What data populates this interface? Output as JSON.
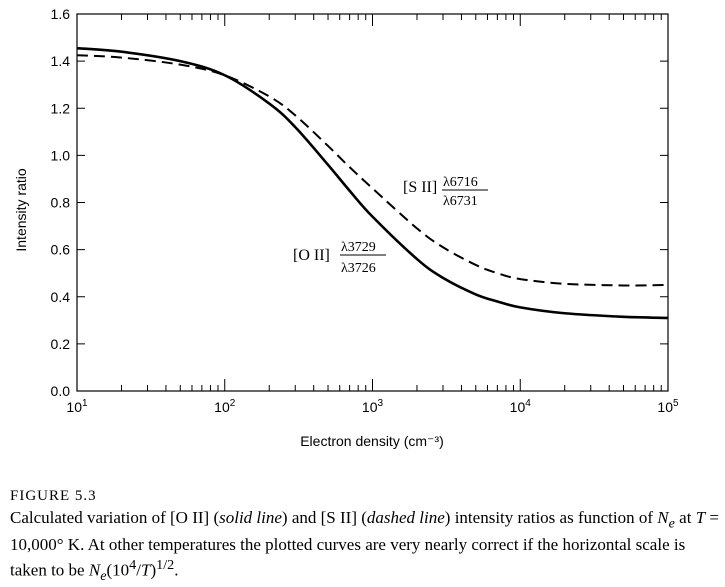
{
  "chart_data": {
    "type": "line",
    "xlabel": "Electron density (cm⁻³)",
    "ylabel": "Intensity ratio",
    "xscale": "log",
    "xlim": [
      10,
      100000
    ],
    "ylim": [
      0.0,
      1.6
    ],
    "x_ticks": [
      {
        "value": 10,
        "base": "10",
        "exp": "1"
      },
      {
        "value": 100,
        "base": "10",
        "exp": "2"
      },
      {
        "value": 1000,
        "base": "10",
        "exp": "3"
      },
      {
        "value": 10000,
        "base": "10",
        "exp": "4"
      },
      {
        "value": 100000,
        "base": "10",
        "exp": "5"
      }
    ],
    "y_ticks": [
      "0.0",
      "0.2",
      "0.4",
      "0.6",
      "0.8",
      "1.0",
      "1.2",
      "1.4",
      "1.6"
    ],
    "grid": false,
    "series": [
      {
        "id": "oii",
        "name": "[O II] λ3729/λ3726",
        "style": "solid",
        "x": [
          10,
          20,
          50,
          100,
          200,
          300,
          500,
          700,
          1000,
          2000,
          3000,
          5000,
          7000,
          10000,
          20000,
          50000,
          100000
        ],
        "y": [
          1.455,
          1.44,
          1.4,
          1.34,
          1.22,
          1.12,
          0.96,
          0.85,
          0.74,
          0.56,
          0.48,
          0.41,
          0.38,
          0.355,
          0.33,
          0.315,
          0.31
        ]
      },
      {
        "id": "sii",
        "name": "[S II] λ6716/λ6731",
        "style": "dashed",
        "x": [
          10,
          20,
          50,
          100,
          200,
          300,
          500,
          700,
          1000,
          2000,
          3000,
          5000,
          7000,
          10000,
          20000,
          50000,
          100000
        ],
        "y": [
          1.425,
          1.415,
          1.385,
          1.34,
          1.25,
          1.17,
          1.04,
          0.95,
          0.86,
          0.69,
          0.61,
          0.535,
          0.5,
          0.475,
          0.455,
          0.448,
          0.45
        ]
      }
    ],
    "annotations": {
      "sii": {
        "prefix": "[S II]",
        "numerator": "λ6716",
        "denominator": "λ6731"
      },
      "oii": {
        "prefix": "[O II]",
        "numerator": "λ3729",
        "denominator": "λ3726"
      }
    }
  },
  "caption": {
    "figure_label": "FIGURE 5.3",
    "t1": "Calculated variation of [O II] (",
    "t2": "solid line",
    "t3": ") and [S II] (",
    "t4": "dashed line",
    "t5": ") intensity ratios as function of ",
    "ne1": "N",
    "ne1_sub": "e",
    "t6": " at ",
    "t_var": "T",
    "t7": " = 10,000° K. At other temperatures the plotted curves are very nearly correct if the horizontal scale is taken to be ",
    "ne2": "N",
    "ne2_sub": "e",
    "t8": "(10",
    "t8_sup": "4",
    "t9": "/",
    "t10": "T",
    "t11": ")",
    "t11_sup": "1/2",
    "t12": "."
  }
}
